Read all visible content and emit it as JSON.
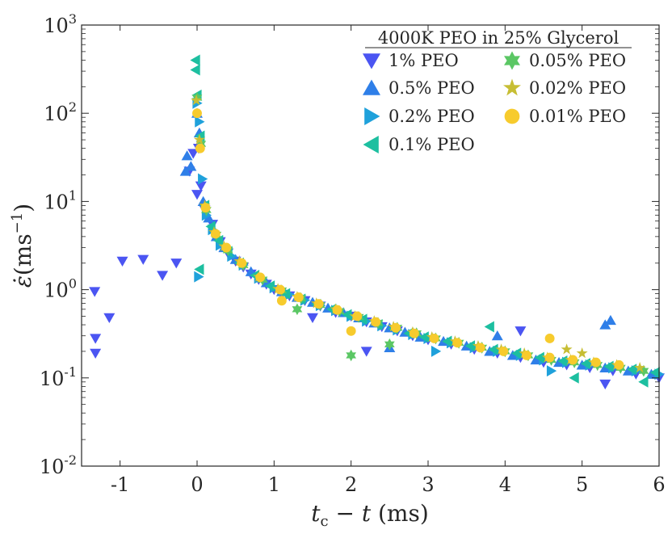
{
  "chart_data": {
    "type": "scatter",
    "title": "",
    "xlabel": "t_c − t (ms)",
    "ylabel": "ε̇ (ms⁻¹)",
    "yscale": "log",
    "xlim": [
      -1.5,
      6
    ],
    "ylim_exp": [
      -2,
      3
    ],
    "x_ticks": [
      -1,
      0,
      1,
      2,
      3,
      4,
      5,
      6
    ],
    "x_tick_labels": [
      "-1",
      "0",
      "1",
      "2",
      "3",
      "4",
      "5",
      "6"
    ],
    "y_tick_exps": [
      -2,
      -1,
      0,
      1,
      2,
      3
    ],
    "y_tick_labels": [
      "10",
      "10",
      "10",
      "10",
      "10",
      "10"
    ],
    "y_tick_sups": [
      "-2",
      "-1",
      "0",
      "1",
      "2",
      "3"
    ],
    "legend": {
      "title": "4000K PEO in 25% Glycerol",
      "placement": "top-right",
      "columns": 2
    },
    "series": [
      {
        "name": "1% PEO",
        "marker": "triangle-down",
        "color": "#4B55F2",
        "points": [
          [
            -1.33,
            0.95
          ],
          [
            -1.32,
            0.28
          ],
          [
            -1.32,
            0.19
          ],
          [
            -1.14,
            0.48
          ],
          [
            -0.97,
            2.1
          ],
          [
            -0.7,
            2.2
          ],
          [
            -0.45,
            1.45
          ],
          [
            -0.27,
            2.0
          ],
          [
            -0.1,
            22
          ],
          [
            -0.05,
            35
          ],
          [
            0.0,
            12
          ],
          [
            0.02,
            40
          ],
          [
            0.05,
            15
          ],
          [
            0.1,
            8
          ],
          [
            0.2,
            5.5
          ],
          [
            0.3,
            3.5
          ],
          [
            0.4,
            2.6
          ],
          [
            0.5,
            2.1
          ],
          [
            0.6,
            1.8
          ],
          [
            0.7,
            1.5
          ],
          [
            0.8,
            1.3
          ],
          [
            0.9,
            1.15
          ],
          [
            1.0,
            1.0
          ],
          [
            1.2,
            0.85
          ],
          [
            1.4,
            0.75
          ],
          [
            1.6,
            0.65
          ],
          [
            1.8,
            0.55
          ],
          [
            2.0,
            0.5
          ],
          [
            2.2,
            0.43
          ],
          [
            2.4,
            0.38
          ],
          [
            2.6,
            0.34
          ],
          [
            2.8,
            0.3
          ],
          [
            3.0,
            0.27
          ],
          [
            3.3,
            0.24
          ],
          [
            3.6,
            0.21
          ],
          [
            3.9,
            0.19
          ],
          [
            4.2,
            0.17
          ],
          [
            4.5,
            0.15
          ],
          [
            4.8,
            0.14
          ],
          [
            5.1,
            0.13
          ],
          [
            5.4,
            0.12
          ],
          [
            5.7,
            0.11
          ],
          [
            6.0,
            0.1
          ],
          [
            2.2,
            0.2
          ],
          [
            1.5,
            0.48
          ],
          [
            4.2,
            0.34
          ],
          [
            5.3,
            0.085
          ]
        ]
      },
      {
        "name": "0.5% PEO",
        "marker": "triangle-up",
        "color": "#2F7FE8",
        "points": [
          [
            -0.13,
            33
          ],
          [
            -0.08,
            25
          ],
          [
            -0.15,
            22
          ],
          [
            0.0,
            100
          ],
          [
            0.03,
            60
          ],
          [
            0.08,
            10
          ],
          [
            0.15,
            6.5
          ],
          [
            0.25,
            4
          ],
          [
            0.35,
            3
          ],
          [
            0.5,
            2.2
          ],
          [
            0.7,
            1.6
          ],
          [
            0.9,
            1.2
          ],
          [
            1.1,
            0.95
          ],
          [
            1.3,
            0.82
          ],
          [
            1.5,
            0.72
          ],
          [
            1.7,
            0.62
          ],
          [
            1.9,
            0.55
          ],
          [
            2.1,
            0.48
          ],
          [
            2.3,
            0.42
          ],
          [
            2.5,
            0.37
          ],
          [
            2.7,
            0.33
          ],
          [
            2.9,
            0.29
          ],
          [
            3.2,
            0.26
          ],
          [
            3.5,
            0.23
          ],
          [
            3.8,
            0.2
          ],
          [
            4.1,
            0.18
          ],
          [
            4.4,
            0.16
          ],
          [
            4.7,
            0.15
          ],
          [
            5.0,
            0.14
          ],
          [
            5.3,
            0.13
          ],
          [
            5.6,
            0.12
          ],
          [
            5.9,
            0.11
          ],
          [
            5.3,
            0.4
          ],
          [
            5.37,
            0.45
          ],
          [
            2.5,
            0.22
          ],
          [
            3.9,
            0.3
          ]
        ]
      },
      {
        "name": "0.2% PEO",
        "marker": "triangle-right",
        "color": "#1FA1DB",
        "points": [
          [
            0.0,
            130
          ],
          [
            0.03,
            80
          ],
          [
            0.07,
            18
          ],
          [
            0.12,
            7
          ],
          [
            0.2,
            4.8
          ],
          [
            0.3,
            3.2
          ],
          [
            0.45,
            2.4
          ],
          [
            0.6,
            1.9
          ],
          [
            0.8,
            1.35
          ],
          [
            1.0,
            1.05
          ],
          [
            1.2,
            0.88
          ],
          [
            1.4,
            0.76
          ],
          [
            1.6,
            0.66
          ],
          [
            1.8,
            0.58
          ],
          [
            2.0,
            0.5
          ],
          [
            2.2,
            0.44
          ],
          [
            2.4,
            0.39
          ],
          [
            2.6,
            0.35
          ],
          [
            2.8,
            0.31
          ],
          [
            3.0,
            0.28
          ],
          [
            3.3,
            0.25
          ],
          [
            3.6,
            0.22
          ],
          [
            3.9,
            0.2
          ],
          [
            4.2,
            0.18
          ],
          [
            4.5,
            0.16
          ],
          [
            4.8,
            0.15
          ],
          [
            5.1,
            0.14
          ],
          [
            5.4,
            0.13
          ],
          [
            5.7,
            0.12
          ],
          [
            6.0,
            0.11
          ],
          [
            0.02,
            1.4
          ],
          [
            3.1,
            0.2
          ],
          [
            4.6,
            0.12
          ]
        ]
      },
      {
        "name": "0.1% PEO",
        "marker": "triangle-left",
        "color": "#1DBFA0",
        "points": [
          [
            -0.02,
            400
          ],
          [
            -0.02,
            310
          ],
          [
            0.0,
            160
          ],
          [
            0.04,
            55
          ],
          [
            0.1,
            9
          ],
          [
            0.18,
            5.2
          ],
          [
            0.28,
            3.6
          ],
          [
            0.4,
            2.7
          ],
          [
            0.55,
            2.0
          ],
          [
            0.75,
            1.45
          ],
          [
            0.95,
            1.1
          ],
          [
            1.15,
            0.9
          ],
          [
            1.35,
            0.78
          ],
          [
            1.55,
            0.68
          ],
          [
            1.75,
            0.6
          ],
          [
            1.95,
            0.52
          ],
          [
            2.15,
            0.46
          ],
          [
            2.35,
            0.4
          ],
          [
            2.55,
            0.36
          ],
          [
            2.75,
            0.32
          ],
          [
            2.95,
            0.29
          ],
          [
            3.25,
            0.26
          ],
          [
            3.55,
            0.23
          ],
          [
            3.85,
            0.21
          ],
          [
            4.15,
            0.19
          ],
          [
            4.45,
            0.17
          ],
          [
            4.75,
            0.155
          ],
          [
            5.05,
            0.145
          ],
          [
            5.35,
            0.135
          ],
          [
            5.65,
            0.125
          ],
          [
            5.95,
            0.115
          ],
          [
            0.03,
            1.7
          ],
          [
            3.8,
            0.38
          ],
          [
            4.9,
            0.1
          ],
          [
            5.8,
            0.09
          ]
        ]
      },
      {
        "name": "0.05% PEO",
        "marker": "hexagram",
        "color": "#5BC764",
        "points": [
          [
            0.0,
            150
          ],
          [
            0.05,
            45
          ],
          [
            0.12,
            8
          ],
          [
            0.25,
            4.2
          ],
          [
            0.4,
            2.8
          ],
          [
            0.6,
            1.9
          ],
          [
            0.85,
            1.3
          ],
          [
            1.1,
            0.98
          ],
          [
            1.35,
            0.8
          ],
          [
            1.6,
            0.67
          ],
          [
            1.85,
            0.57
          ],
          [
            2.1,
            0.49
          ],
          [
            2.35,
            0.42
          ],
          [
            2.6,
            0.37
          ],
          [
            2.85,
            0.32
          ],
          [
            3.1,
            0.28
          ],
          [
            3.4,
            0.25
          ],
          [
            3.7,
            0.22
          ],
          [
            4.0,
            0.2
          ],
          [
            4.3,
            0.18
          ],
          [
            4.6,
            0.16
          ],
          [
            4.9,
            0.15
          ],
          [
            5.2,
            0.14
          ],
          [
            5.5,
            0.13
          ],
          [
            5.8,
            0.12
          ],
          [
            2.0,
            0.18
          ],
          [
            1.3,
            0.6
          ],
          [
            2.5,
            0.24
          ]
        ]
      },
      {
        "name": "0.02% PEO",
        "marker": "star",
        "color": "#C7BE34",
        "points": [
          [
            -0.01,
            140
          ],
          [
            0.03,
            50
          ],
          [
            0.1,
            9
          ],
          [
            0.22,
            4.5
          ],
          [
            0.35,
            3.1
          ],
          [
            0.55,
            2.1
          ],
          [
            0.8,
            1.4
          ],
          [
            1.05,
            1.02
          ],
          [
            1.3,
            0.83
          ],
          [
            1.55,
            0.7
          ],
          [
            1.8,
            0.6
          ],
          [
            2.05,
            0.5
          ],
          [
            2.3,
            0.44
          ],
          [
            2.55,
            0.38
          ],
          [
            2.8,
            0.33
          ],
          [
            3.05,
            0.29
          ],
          [
            3.35,
            0.26
          ],
          [
            3.65,
            0.23
          ],
          [
            3.95,
            0.21
          ],
          [
            4.25,
            0.19
          ],
          [
            4.55,
            0.17
          ],
          [
            4.85,
            0.16
          ],
          [
            5.15,
            0.15
          ],
          [
            5.45,
            0.14
          ],
          [
            5.75,
            0.13
          ],
          [
            4.8,
            0.21
          ],
          [
            5.0,
            0.19
          ]
        ]
      },
      {
        "name": "0.01% PEO",
        "marker": "circle",
        "color": "#F7CB2D",
        "points": [
          [
            0.0,
            100
          ],
          [
            0.04,
            40
          ],
          [
            0.11,
            8.5
          ],
          [
            0.24,
            4.3
          ],
          [
            0.38,
            3
          ],
          [
            0.58,
            2
          ],
          [
            0.82,
            1.38
          ],
          [
            1.08,
            1.0
          ],
          [
            1.32,
            0.82
          ],
          [
            1.58,
            0.69
          ],
          [
            1.82,
            0.59
          ],
          [
            2.08,
            0.5
          ],
          [
            2.32,
            0.43
          ],
          [
            2.58,
            0.37
          ],
          [
            2.82,
            0.32
          ],
          [
            3.08,
            0.28
          ],
          [
            3.38,
            0.25
          ],
          [
            3.68,
            0.22
          ],
          [
            3.98,
            0.2
          ],
          [
            4.28,
            0.18
          ],
          [
            4.58,
            0.17
          ],
          [
            4.88,
            0.16
          ],
          [
            5.18,
            0.15
          ],
          [
            5.48,
            0.14
          ],
          [
            4.58,
            0.28
          ],
          [
            2.0,
            0.34
          ],
          [
            1.1,
            0.75
          ]
        ]
      }
    ]
  }
}
